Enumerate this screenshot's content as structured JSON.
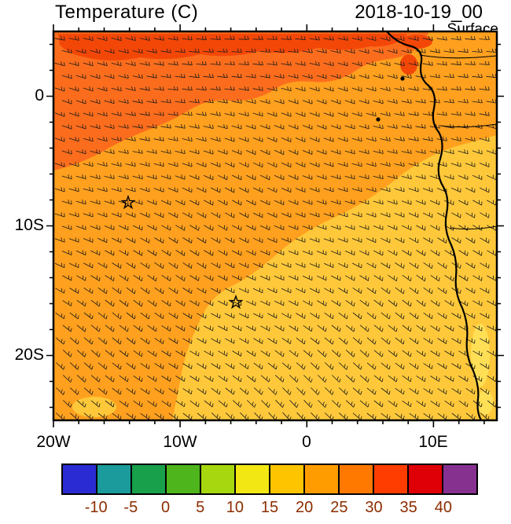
{
  "header": {
    "title": "Temperature (C)",
    "datetime": "2018-10-19_00",
    "level": "Surface"
  },
  "axes": {
    "x_ticks": [
      "20W",
      "10W",
      "0",
      "10E"
    ],
    "y_ticks": [
      "0",
      "10S",
      "20S"
    ]
  },
  "colorbar": {
    "labels": [
      "-10",
      "-5",
      "0",
      "5",
      "10",
      "15",
      "20",
      "25",
      "30",
      "35",
      "40"
    ],
    "colors": [
      "#2b2bd4",
      "#1b9b9b",
      "#18a04a",
      "#4fb51c",
      "#a6d70f",
      "#f2e713",
      "#ffc400",
      "#ff9d00",
      "#ff7800",
      "#ff3d00",
      "#df0007",
      "#863090"
    ],
    "label_color": "#8b2e00"
  },
  "map_colors": {
    "main": "#ffa01e",
    "warm_band": "#fb6d1d",
    "hot_patch": "#f34708",
    "cool": "#ffc83a",
    "coast_cool": "#ffdf55",
    "line": "#000000"
  },
  "chart_data": {
    "type": "heatmap",
    "title": "Temperature (C)",
    "valid_time": "2018-10-19_00",
    "level": "Surface",
    "x_axis": {
      "ticks": [
        "20W",
        "10W",
        "0",
        "10E"
      ],
      "domain_deg_lon": [
        -20,
        15
      ]
    },
    "y_axis": {
      "ticks": [
        "0",
        "10S",
        "20S"
      ],
      "domain_deg_lat": [
        5,
        -25
      ]
    },
    "scale_levels_c": [
      -10,
      -5,
      0,
      5,
      10,
      15,
      20,
      25,
      30,
      35,
      40
    ],
    "scale_colors": [
      "#2b2bd4",
      "#1b9b9b",
      "#18a04a",
      "#4fb51c",
      "#a6d70f",
      "#f2e713",
      "#ffc400",
      "#ff9d00",
      "#ff7800",
      "#ff3d00",
      "#df0007",
      "#863090"
    ],
    "regions": [
      {
        "name": "hot patches along northern edge",
        "approx_extent": "3N-5N, 19W-5E",
        "temp_c_range": [
          30,
          35
        ],
        "color": "#f34708"
      },
      {
        "name": "northern warm band",
        "approx_extent": "north of ~2S in west, widening toward Gulf of Guinea",
        "temp_c_range": [
          25,
          30
        ],
        "color": "#fb6d1d"
      },
      {
        "name": "central tropical Atlantic",
        "approx_extent": "most of domain, 2S-25S western half",
        "temp_c_range": [
          20,
          25
        ],
        "color": "#ffa01e"
      },
      {
        "name": "southeastern cool sector (Benguela region)",
        "approx_extent": "southeast of diagonal from ~5E,4S to ~13W,25S",
        "temp_c_range": [
          15,
          20
        ],
        "color": "#ffc83a"
      }
    ],
    "overlays": [
      "surface wind barbs",
      "African west coastline",
      "country borders"
    ],
    "markers": [
      {
        "symbol": "star",
        "lon": "14W",
        "lat": "8S"
      },
      {
        "symbol": "star",
        "lon": "6W",
        "lat": "16S"
      }
    ]
  }
}
